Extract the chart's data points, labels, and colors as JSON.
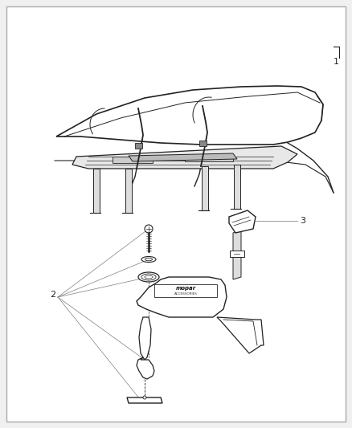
{
  "bg": "#f0f0f0",
  "white": "#ffffff",
  "border": "#aaaaaa",
  "lc": "#222222",
  "lc_light": "#888888",
  "label1": "1",
  "label2": "2",
  "label3": "3",
  "fig_w": 4.38,
  "fig_h": 5.33,
  "dpi": 100
}
